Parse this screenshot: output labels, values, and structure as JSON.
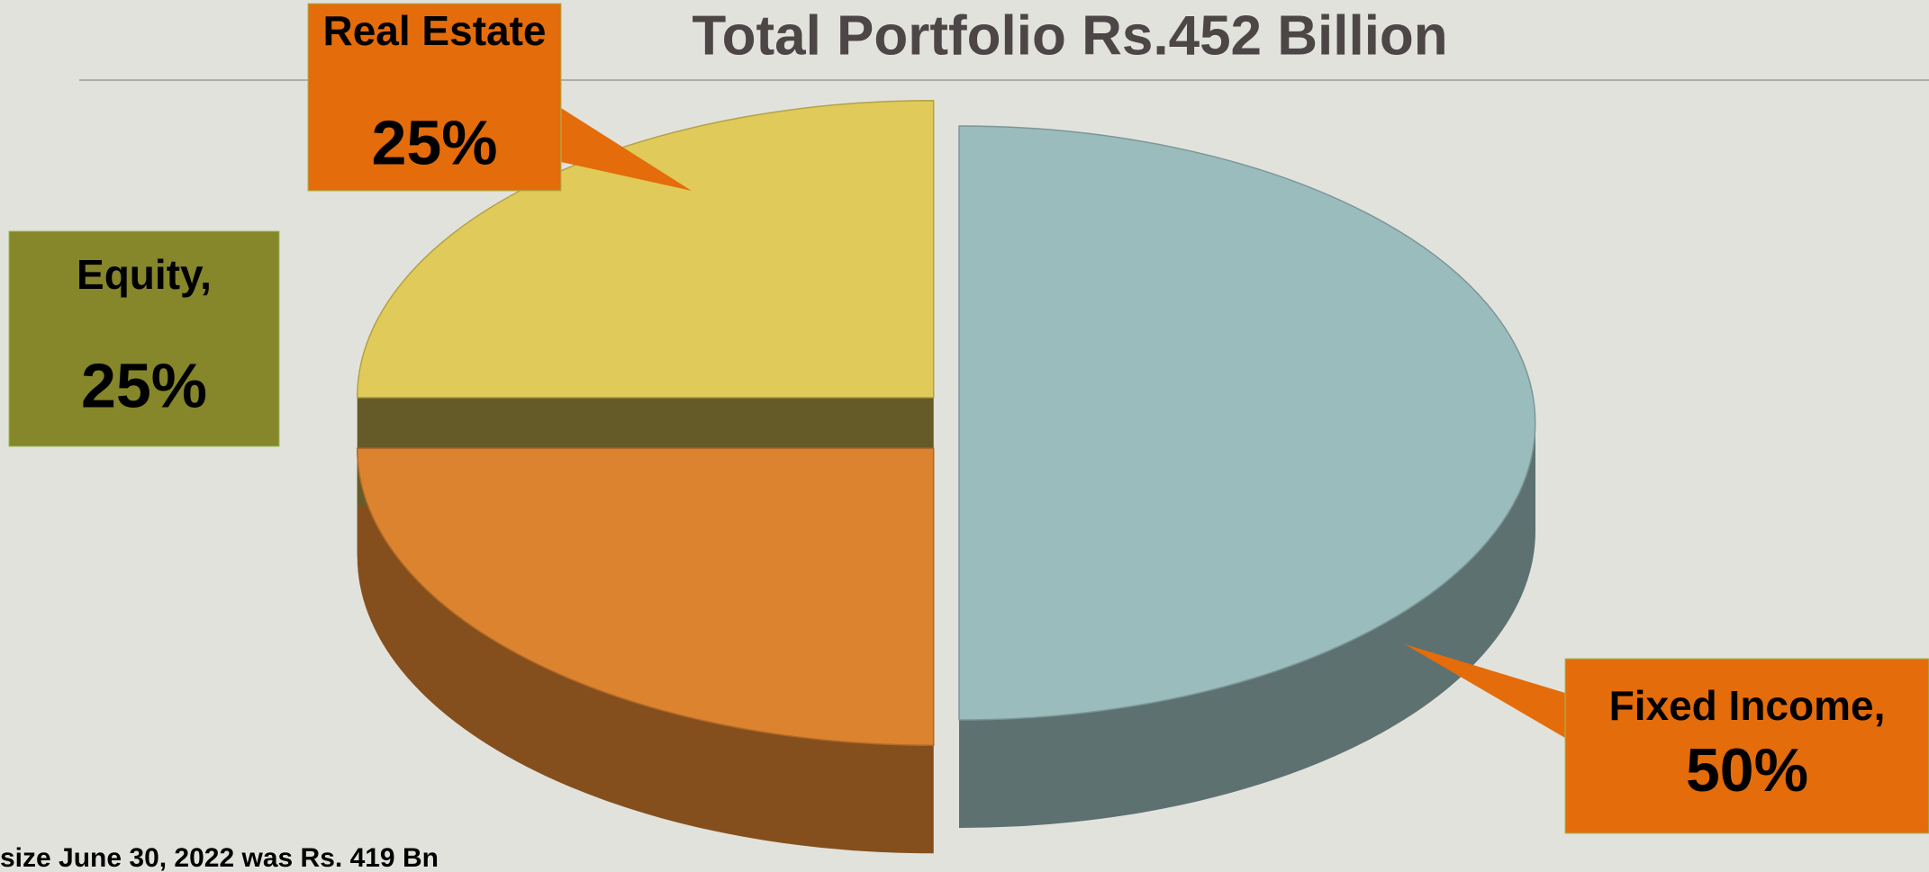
{
  "chart_data": {
    "type": "pie",
    "title": "Total Portfolio Rs.452 Billion",
    "categories": [
      "Fixed Income,",
      "Equity,",
      "Real Estate"
    ],
    "values": [
      50,
      25,
      25
    ],
    "value_labels": [
      "50%",
      "25%",
      "25%"
    ],
    "colors": [
      "#9bbcbd",
      "#dc8330",
      "#e0ca5a"
    ],
    "label_colors": [
      "#e46c0a",
      "#86862a",
      "#e46c0a"
    ]
  },
  "footer": "size June 30, 2022 was Rs. 419 Bn"
}
